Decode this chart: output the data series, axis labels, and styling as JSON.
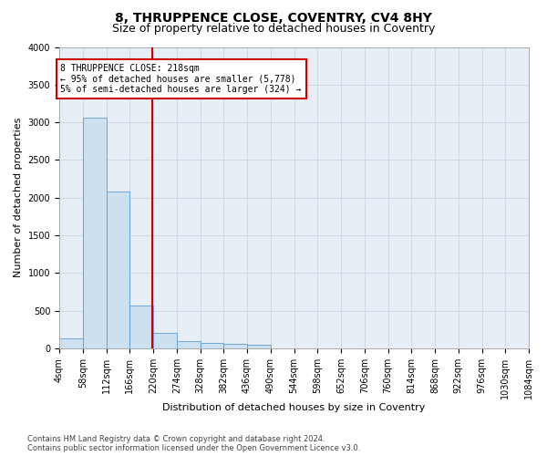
{
  "title": "8, THRUPPENCE CLOSE, COVENTRY, CV4 8HY",
  "subtitle": "Size of property relative to detached houses in Coventry",
  "xlabel": "Distribution of detached houses by size in Coventry",
  "ylabel": "Number of detached properties",
  "footer_line1": "Contains HM Land Registry data © Crown copyright and database right 2024.",
  "footer_line2": "Contains public sector information licensed under the Open Government Licence v3.0.",
  "bar_edges": [
    4,
    58,
    112,
    166,
    220,
    274,
    328,
    382,
    436,
    490,
    544,
    598,
    652,
    706,
    760,
    814,
    868,
    922,
    976,
    1030,
    1084
  ],
  "bar_heights": [
    130,
    3060,
    2080,
    570,
    210,
    95,
    75,
    60,
    50,
    5,
    0,
    0,
    0,
    0,
    0,
    0,
    0,
    0,
    0,
    0
  ],
  "bar_color": "#cce0f0",
  "bar_edgecolor": "#5b9bd5",
  "property_size": 218,
  "annotation_title": "8 THRUPPENCE CLOSE: 218sqm",
  "annotation_line1": "← 95% of detached houses are smaller (5,778)",
  "annotation_line2": "5% of semi-detached houses are larger (324) →",
  "annotation_box_color": "#cc0000",
  "vline_color": "#cc0000",
  "ylim": [
    0,
    4000
  ],
  "yticks": [
    0,
    500,
    1000,
    1500,
    2000,
    2500,
    3000,
    3500,
    4000
  ],
  "background_color": "#ffffff",
  "plot_bg_color": "#e8eef5",
  "grid_color": "#c8d4e4",
  "title_fontsize": 10,
  "subtitle_fontsize": 9,
  "axis_label_fontsize": 8,
  "tick_fontsize": 7,
  "annotation_fontsize": 7,
  "footer_fontsize": 6
}
